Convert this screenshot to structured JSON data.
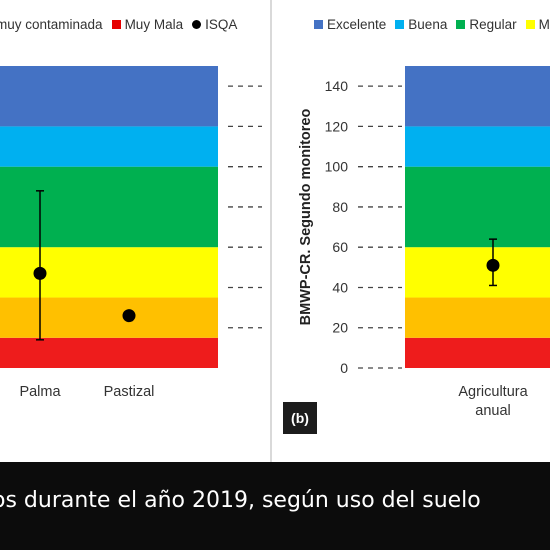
{
  "panel_a": {
    "legend": [
      {
        "label": "muy contaminada",
        "color": "#c0392b",
        "kind": "none"
      },
      {
        "label": "Muy Mala",
        "color": "#e60000",
        "kind": "square"
      },
      {
        "label": "ISQA",
        "color": "#000000",
        "kind": "dot"
      }
    ]
  },
  "panel_b": {
    "legend": [
      {
        "label": "Excelente",
        "color": "#4472c4",
        "kind": "square"
      },
      {
        "label": "Buena",
        "color": "#00b0f0",
        "kind": "square"
      },
      {
        "label": "Regular",
        "color": "#00b050",
        "kind": "square"
      },
      {
        "label": "Ma",
        "color": "#ffff00",
        "kind": "square"
      }
    ],
    "label": "(b)"
  },
  "caption": "os durante el año 2019, según uso del suelo",
  "chart_data": [
    {
      "type": "scatter",
      "panel": "a",
      "title": "",
      "xlabel": "",
      "ylabel": "",
      "categories": [
        "Palma",
        "Pastizal"
      ],
      "bands": [
        {
          "name": "Muy Mala",
          "from": 0,
          "to": 15,
          "color": "#ee1c1c"
        },
        {
          "name": "Mala",
          "from": 15,
          "to": 35,
          "color": "#ffc000"
        },
        {
          "name": "",
          "from": 35,
          "to": 60,
          "color": "#ffff00"
        },
        {
          "name": "",
          "from": 60,
          "to": 100,
          "color": "#00b050"
        },
        {
          "name": "",
          "from": 100,
          "to": 120,
          "color": "#00b0f0"
        },
        {
          "name": "",
          "from": 120,
          "to": 150,
          "color": "#4472c4"
        }
      ],
      "series": [
        {
          "name": "ISQA",
          "values": [
            47,
            26
          ],
          "error_low": [
            14,
            null
          ],
          "error_high": [
            88,
            null
          ]
        }
      ],
      "ylim": [
        0,
        150
      ]
    },
    {
      "type": "scatter",
      "panel": "b",
      "title": "",
      "xlabel": "",
      "ylabel": "BMWP-CR. Segundo monitoreo",
      "categories": [
        "Agricultura anual"
      ],
      "category_lines": [
        [
          "Agricultura",
          "anual"
        ]
      ],
      "yticks": [
        0,
        20,
        40,
        60,
        80,
        100,
        120,
        140
      ],
      "bands": [
        {
          "name": "",
          "from": 0,
          "to": 15,
          "color": "#ee1c1c"
        },
        {
          "name": "",
          "from": 15,
          "to": 35,
          "color": "#ffc000"
        },
        {
          "name": "Ma",
          "from": 35,
          "to": 60,
          "color": "#ffff00"
        },
        {
          "name": "Regular",
          "from": 60,
          "to": 100,
          "color": "#00b050"
        },
        {
          "name": "Buena",
          "from": 100,
          "to": 120,
          "color": "#00b0f0"
        },
        {
          "name": "Excelente",
          "from": 120,
          "to": 150,
          "color": "#4472c4"
        }
      ],
      "series": [
        {
          "name": "",
          "values": [
            51
          ],
          "error_low": [
            41
          ],
          "error_high": [
            64
          ]
        }
      ],
      "ylim": [
        0,
        150
      ]
    }
  ]
}
